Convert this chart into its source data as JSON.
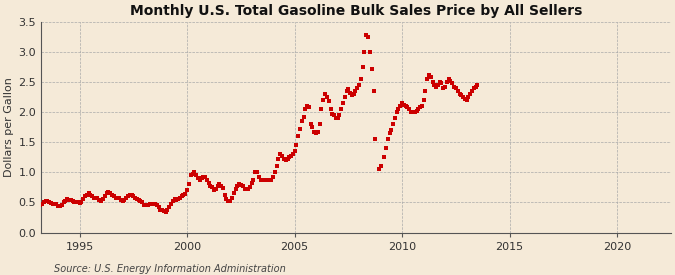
{
  "title": "Monthly U.S. Total Gasoline Bulk Sales Price by All Sellers",
  "ylabel": "Dollars per Gallon",
  "source": "Source: U.S. Energy Information Administration",
  "background_color": "#f5ead8",
  "plot_bg_color": "#f5ead8",
  "dot_color": "#cc0000",
  "xlim_start": 1993.2,
  "xlim_end": 2022.5,
  "ylim": [
    0.0,
    3.5
  ],
  "yticks": [
    0.0,
    0.5,
    1.0,
    1.5,
    2.0,
    2.5,
    3.0,
    3.5
  ],
  "xticks": [
    1995,
    2000,
    2005,
    2010,
    2015,
    2020
  ],
  "data": [
    [
      1993.08,
      0.42
    ],
    [
      1993.17,
      0.45
    ],
    [
      1993.25,
      0.48
    ],
    [
      1993.33,
      0.5
    ],
    [
      1993.42,
      0.52
    ],
    [
      1993.5,
      0.52
    ],
    [
      1993.58,
      0.5
    ],
    [
      1993.67,
      0.49
    ],
    [
      1993.75,
      0.47
    ],
    [
      1993.83,
      0.48
    ],
    [
      1993.92,
      0.47
    ],
    [
      1994.0,
      0.44
    ],
    [
      1994.08,
      0.44
    ],
    [
      1994.17,
      0.46
    ],
    [
      1994.25,
      0.5
    ],
    [
      1994.33,
      0.53
    ],
    [
      1994.42,
      0.55
    ],
    [
      1994.5,
      0.54
    ],
    [
      1994.58,
      0.54
    ],
    [
      1994.67,
      0.52
    ],
    [
      1994.75,
      0.5
    ],
    [
      1994.83,
      0.51
    ],
    [
      1994.92,
      0.51
    ],
    [
      1995.0,
      0.49
    ],
    [
      1995.08,
      0.51
    ],
    [
      1995.17,
      0.55
    ],
    [
      1995.25,
      0.61
    ],
    [
      1995.33,
      0.63
    ],
    [
      1995.42,
      0.65
    ],
    [
      1995.5,
      0.62
    ],
    [
      1995.58,
      0.6
    ],
    [
      1995.67,
      0.58
    ],
    [
      1995.75,
      0.57
    ],
    [
      1995.83,
      0.57
    ],
    [
      1995.92,
      0.54
    ],
    [
      1996.0,
      0.52
    ],
    [
      1996.08,
      0.55
    ],
    [
      1996.17,
      0.61
    ],
    [
      1996.25,
      0.65
    ],
    [
      1996.33,
      0.67
    ],
    [
      1996.42,
      0.65
    ],
    [
      1996.5,
      0.62
    ],
    [
      1996.58,
      0.6
    ],
    [
      1996.67,
      0.58
    ],
    [
      1996.75,
      0.57
    ],
    [
      1996.83,
      0.57
    ],
    [
      1996.92,
      0.54
    ],
    [
      1997.0,
      0.52
    ],
    [
      1997.08,
      0.54
    ],
    [
      1997.17,
      0.58
    ],
    [
      1997.25,
      0.61
    ],
    [
      1997.33,
      0.62
    ],
    [
      1997.42,
      0.62
    ],
    [
      1997.5,
      0.6
    ],
    [
      1997.58,
      0.58
    ],
    [
      1997.67,
      0.56
    ],
    [
      1997.75,
      0.54
    ],
    [
      1997.83,
      0.53
    ],
    [
      1997.92,
      0.5
    ],
    [
      1998.0,
      0.46
    ],
    [
      1998.08,
      0.45
    ],
    [
      1998.17,
      0.45
    ],
    [
      1998.25,
      0.47
    ],
    [
      1998.33,
      0.48
    ],
    [
      1998.42,
      0.48
    ],
    [
      1998.5,
      0.47
    ],
    [
      1998.58,
      0.45
    ],
    [
      1998.67,
      0.42
    ],
    [
      1998.75,
      0.38
    ],
    [
      1998.83,
      0.37
    ],
    [
      1998.92,
      0.36
    ],
    [
      1999.0,
      0.35
    ],
    [
      1999.08,
      0.37
    ],
    [
      1999.17,
      0.42
    ],
    [
      1999.25,
      0.48
    ],
    [
      1999.33,
      0.52
    ],
    [
      1999.42,
      0.55
    ],
    [
      1999.5,
      0.54
    ],
    [
      1999.58,
      0.56
    ],
    [
      1999.67,
      0.58
    ],
    [
      1999.75,
      0.6
    ],
    [
      1999.83,
      0.62
    ],
    [
      1999.92,
      0.64
    ],
    [
      2000.0,
      0.7
    ],
    [
      2000.08,
      0.8
    ],
    [
      2000.17,
      0.95
    ],
    [
      2000.25,
      0.98
    ],
    [
      2000.33,
      1.0
    ],
    [
      2000.42,
      0.95
    ],
    [
      2000.5,
      0.9
    ],
    [
      2000.58,
      0.88
    ],
    [
      2000.67,
      0.9
    ],
    [
      2000.75,
      0.93
    ],
    [
      2000.83,
      0.92
    ],
    [
      2000.92,
      0.88
    ],
    [
      2001.0,
      0.82
    ],
    [
      2001.08,
      0.78
    ],
    [
      2001.17,
      0.75
    ],
    [
      2001.25,
      0.7
    ],
    [
      2001.33,
      0.72
    ],
    [
      2001.42,
      0.78
    ],
    [
      2001.5,
      0.8
    ],
    [
      2001.58,
      0.78
    ],
    [
      2001.67,
      0.74
    ],
    [
      2001.75,
      0.63
    ],
    [
      2001.83,
      0.55
    ],
    [
      2001.92,
      0.52
    ],
    [
      2002.0,
      0.52
    ],
    [
      2002.08,
      0.58
    ],
    [
      2002.17,
      0.65
    ],
    [
      2002.25,
      0.72
    ],
    [
      2002.33,
      0.78
    ],
    [
      2002.42,
      0.8
    ],
    [
      2002.5,
      0.79
    ],
    [
      2002.58,
      0.77
    ],
    [
      2002.67,
      0.73
    ],
    [
      2002.75,
      0.72
    ],
    [
      2002.83,
      0.73
    ],
    [
      2002.92,
      0.76
    ],
    [
      2003.0,
      0.82
    ],
    [
      2003.08,
      0.88
    ],
    [
      2003.17,
      1.0
    ],
    [
      2003.25,
      1.0
    ],
    [
      2003.33,
      0.92
    ],
    [
      2003.42,
      0.88
    ],
    [
      2003.5,
      0.88
    ],
    [
      2003.58,
      0.87
    ],
    [
      2003.67,
      0.87
    ],
    [
      2003.75,
      0.87
    ],
    [
      2003.83,
      0.88
    ],
    [
      2003.92,
      0.88
    ],
    [
      2004.0,
      0.92
    ],
    [
      2004.08,
      1.0
    ],
    [
      2004.17,
      1.1
    ],
    [
      2004.25,
      1.22
    ],
    [
      2004.33,
      1.3
    ],
    [
      2004.42,
      1.28
    ],
    [
      2004.5,
      1.22
    ],
    [
      2004.58,
      1.2
    ],
    [
      2004.67,
      1.22
    ],
    [
      2004.75,
      1.25
    ],
    [
      2004.83,
      1.28
    ],
    [
      2004.92,
      1.3
    ],
    [
      2005.0,
      1.35
    ],
    [
      2005.08,
      1.45
    ],
    [
      2005.17,
      1.6
    ],
    [
      2005.25,
      1.72
    ],
    [
      2005.33,
      1.85
    ],
    [
      2005.42,
      1.92
    ],
    [
      2005.5,
      2.05
    ],
    [
      2005.58,
      2.1
    ],
    [
      2005.67,
      2.08
    ],
    [
      2005.75,
      1.8
    ],
    [
      2005.83,
      1.75
    ],
    [
      2005.92,
      1.68
    ],
    [
      2006.0,
      1.65
    ],
    [
      2006.08,
      1.68
    ],
    [
      2006.17,
      1.8
    ],
    [
      2006.25,
      2.05
    ],
    [
      2006.33,
      2.2
    ],
    [
      2006.42,
      2.3
    ],
    [
      2006.5,
      2.25
    ],
    [
      2006.58,
      2.18
    ],
    [
      2006.67,
      2.05
    ],
    [
      2006.75,
      1.98
    ],
    [
      2006.83,
      1.95
    ],
    [
      2006.92,
      1.9
    ],
    [
      2007.0,
      1.9
    ],
    [
      2007.08,
      1.95
    ],
    [
      2007.17,
      2.05
    ],
    [
      2007.25,
      2.15
    ],
    [
      2007.33,
      2.25
    ],
    [
      2007.42,
      2.35
    ],
    [
      2007.5,
      2.38
    ],
    [
      2007.58,
      2.32
    ],
    [
      2007.67,
      2.28
    ],
    [
      2007.75,
      2.3
    ],
    [
      2007.83,
      2.35
    ],
    [
      2007.92,
      2.4
    ],
    [
      2008.0,
      2.45
    ],
    [
      2008.08,
      2.55
    ],
    [
      2008.17,
      2.75
    ],
    [
      2008.25,
      3.0
    ],
    [
      2008.33,
      3.28
    ],
    [
      2008.42,
      3.25
    ],
    [
      2008.5,
      3.0
    ],
    [
      2008.58,
      2.72
    ],
    [
      2008.67,
      2.35
    ],
    [
      2008.75,
      1.55
    ],
    [
      2008.92,
      1.05
    ],
    [
      2009.0,
      1.1
    ],
    [
      2009.17,
      1.25
    ],
    [
      2009.25,
      1.4
    ],
    [
      2009.33,
      1.55
    ],
    [
      2009.42,
      1.65
    ],
    [
      2009.5,
      1.7
    ],
    [
      2009.58,
      1.8
    ],
    [
      2009.67,
      1.9
    ],
    [
      2009.75,
      2.0
    ],
    [
      2009.83,
      2.05
    ],
    [
      2009.92,
      2.1
    ],
    [
      2010.0,
      2.15
    ],
    [
      2010.08,
      2.12
    ],
    [
      2010.17,
      2.1
    ],
    [
      2010.25,
      2.08
    ],
    [
      2010.33,
      2.05
    ],
    [
      2010.42,
      2.0
    ],
    [
      2010.5,
      2.0
    ],
    [
      2010.58,
      2.0
    ],
    [
      2010.67,
      2.02
    ],
    [
      2010.75,
      2.05
    ],
    [
      2010.83,
      2.08
    ],
    [
      2010.92,
      2.1
    ],
    [
      2011.0,
      2.2
    ],
    [
      2011.08,
      2.35
    ],
    [
      2011.17,
      2.55
    ],
    [
      2011.25,
      2.62
    ],
    [
      2011.33,
      2.58
    ],
    [
      2011.42,
      2.5
    ],
    [
      2011.5,
      2.45
    ],
    [
      2011.58,
      2.42
    ],
    [
      2011.67,
      2.45
    ],
    [
      2011.75,
      2.5
    ],
    [
      2011.83,
      2.48
    ],
    [
      2011.92,
      2.4
    ],
    [
      2012.0,
      2.42
    ],
    [
      2012.08,
      2.5
    ],
    [
      2012.17,
      2.55
    ],
    [
      2012.25,
      2.52
    ],
    [
      2012.33,
      2.48
    ],
    [
      2012.42,
      2.42
    ],
    [
      2012.5,
      2.4
    ],
    [
      2012.58,
      2.35
    ],
    [
      2012.67,
      2.3
    ],
    [
      2012.75,
      2.28
    ],
    [
      2012.83,
      2.25
    ],
    [
      2012.92,
      2.22
    ],
    [
      2013.0,
      2.2
    ],
    [
      2013.08,
      2.25
    ],
    [
      2013.17,
      2.3
    ],
    [
      2013.25,
      2.35
    ],
    [
      2013.33,
      2.4
    ],
    [
      2013.42,
      2.42
    ],
    [
      2013.5,
      2.45
    ]
  ]
}
